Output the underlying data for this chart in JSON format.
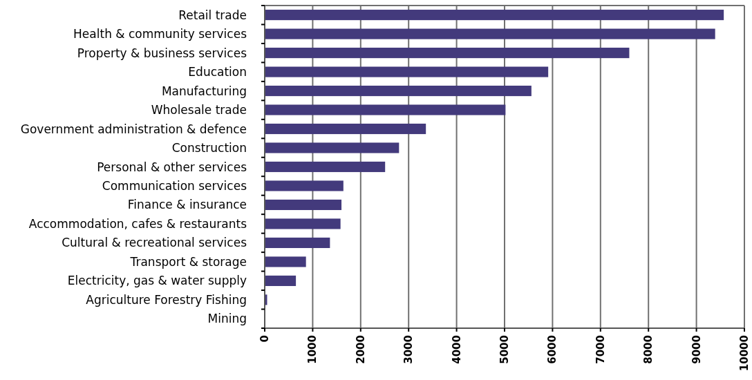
{
  "chart_data": {
    "type": "bar",
    "orientation": "horizontal",
    "categories": [
      "Retail trade",
      "Health & community services",
      "Property & business services",
      "Education",
      "Manufacturing",
      "Wholesale trade",
      "Government administration & defence",
      "Construction",
      "Personal & other services",
      "Communication services",
      "Finance & insurance",
      "Accommodation, cafes & restaurants",
      "Cultural & recreational services",
      "Transport & storage",
      "Electricity, gas & water supply",
      "Agriculture Forestry Fishing",
      "Mining"
    ],
    "values": [
      9570,
      9390,
      7600,
      5910,
      5560,
      5020,
      3360,
      2800,
      2510,
      1640,
      1600,
      1580,
      1360,
      860,
      650,
      50,
      0
    ],
    "color": "#433a7c",
    "xlim": [
      0,
      10000
    ],
    "xticks": [
      0,
      1000,
      2000,
      3000,
      4000,
      5000,
      6000,
      7000,
      8000,
      9000,
      10000
    ],
    "grid": "x"
  }
}
